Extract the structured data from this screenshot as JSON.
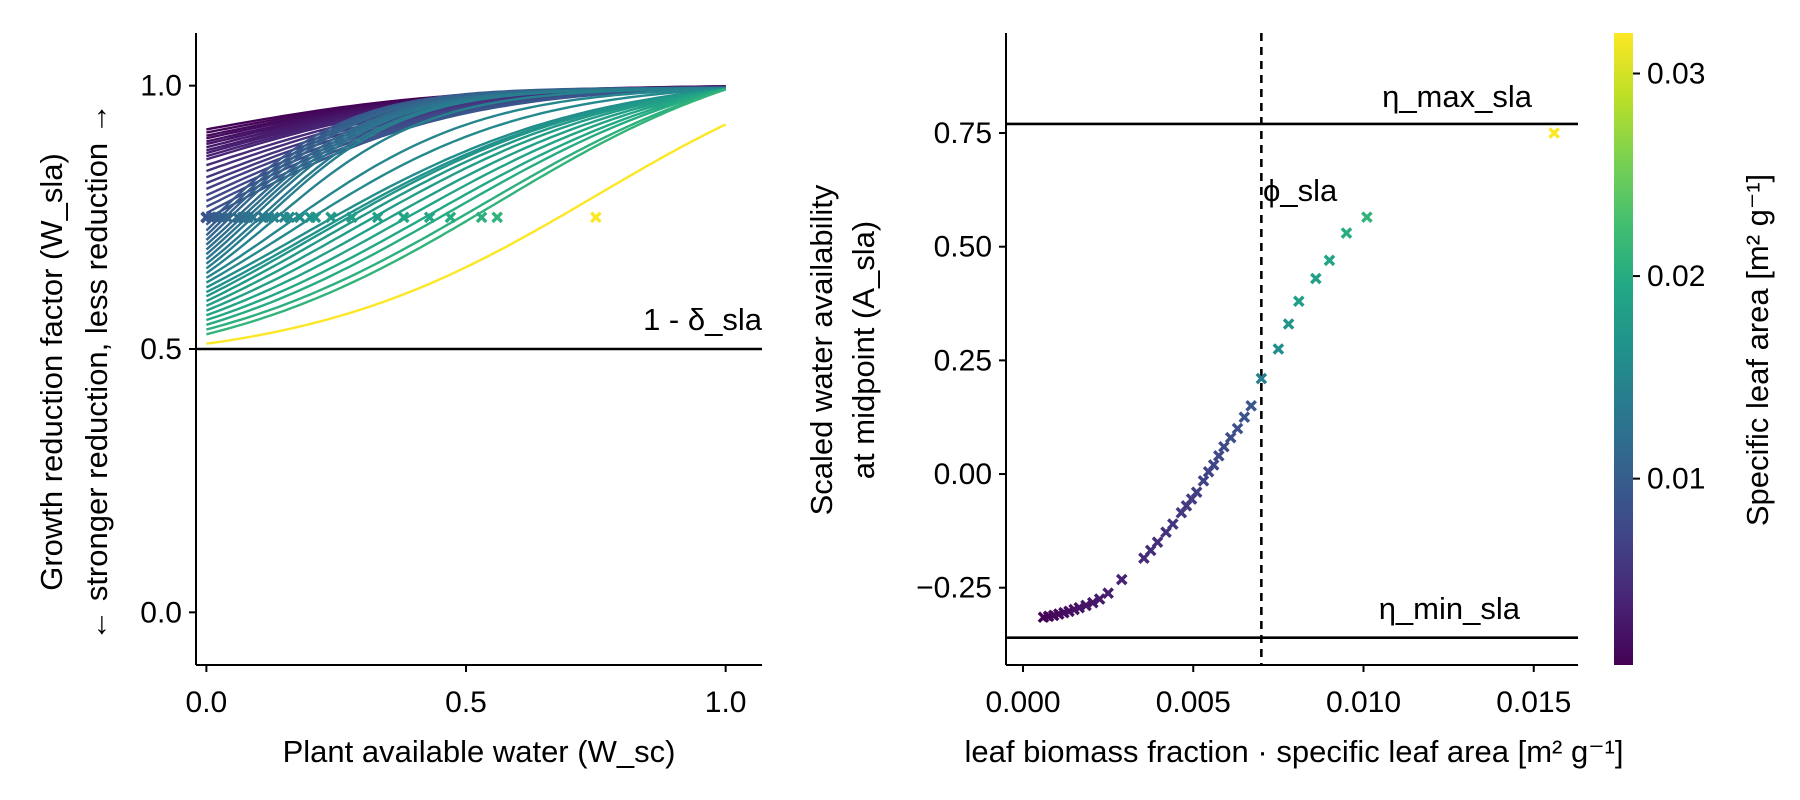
{
  "chart_data": [
    {
      "type": "line",
      "xlabel": "Plant available water (W_sc)",
      "ylabel_lines": [
        "Growth reduction factor (W_sla)",
        "← stronger reduction, less reduction →"
      ],
      "xlim": [
        -0.02,
        1.07
      ],
      "ylim": [
        -0.1,
        1.1
      ],
      "xticks": [
        0.0,
        0.5,
        1.0
      ],
      "xtick_labels": [
        "0.0",
        "0.5",
        "1.0"
      ],
      "yticks": [
        0.0,
        0.5,
        1.0
      ],
      "ytick_labels": [
        "0.0",
        "0.5",
        "1.0"
      ],
      "grid": false,
      "hline": {
        "y": 0.5,
        "label": "1 - δ_sla"
      },
      "curve_model": "logistic in W_sc, each curve passes through its marked midpoint (W_sc, 0.75) and tends to 1.0",
      "series": [
        {
          "sla": 0.001,
          "start": 0.917,
          "midpoint_x": 0.0
        },
        {
          "sla": 0.0013,
          "start": 0.911,
          "midpoint_x": 0.0
        },
        {
          "sla": 0.0016,
          "start": 0.905,
          "midpoint_x": 0.0
        },
        {
          "sla": 0.0019,
          "start": 0.9,
          "midpoint_x": 0.0
        },
        {
          "sla": 0.0022,
          "start": 0.894,
          "midpoint_x": 0.0
        },
        {
          "sla": 0.0025,
          "start": 0.889,
          "midpoint_x": 0.0
        },
        {
          "sla": 0.0028,
          "start": 0.883,
          "midpoint_x": 0.0
        },
        {
          "sla": 0.0031,
          "start": 0.877,
          "midpoint_x": 0.0
        },
        {
          "sla": 0.0034,
          "start": 0.872,
          "midpoint_x": 0.0
        },
        {
          "sla": 0.0037,
          "start": 0.866,
          "midpoint_x": 0.0
        },
        {
          "sla": 0.004,
          "start": 0.86,
          "midpoint_x": 0.0
        },
        {
          "sla": 0.0045,
          "start": 0.849,
          "midpoint_x": 0.0
        },
        {
          "sla": 0.005,
          "start": 0.838,
          "midpoint_x": 0.0
        },
        {
          "sla": 0.0055,
          "start": 0.826,
          "midpoint_x": 0.0
        },
        {
          "sla": 0.006,
          "start": 0.815,
          "midpoint_x": 0.0
        },
        {
          "sla": 0.0065,
          "start": 0.804,
          "midpoint_x": 0.0
        },
        {
          "sla": 0.007,
          "start": 0.792,
          "midpoint_x": 0.0
        },
        {
          "sla": 0.0075,
          "start": 0.781,
          "midpoint_x": 0.0
        },
        {
          "sla": 0.008,
          "start": 0.77,
          "midpoint_x": 0.0
        },
        {
          "sla": 0.0085,
          "start": 0.758,
          "midpoint_x": 0.0
        },
        {
          "sla": 0.009,
          "start": 0.747,
          "midpoint_x": 0.0
        },
        {
          "sla": 0.0095,
          "start": 0.736,
          "midpoint_x": 0.01
        },
        {
          "sla": 0.01,
          "start": 0.725,
          "midpoint_x": 0.02
        },
        {
          "sla": 0.0105,
          "start": 0.716,
          "midpoint_x": 0.03
        },
        {
          "sla": 0.011,
          "start": 0.707,
          "midpoint_x": 0.04
        },
        {
          "sla": 0.0115,
          "start": 0.698,
          "midpoint_x": 0.06
        },
        {
          "sla": 0.012,
          "start": 0.689,
          "midpoint_x": 0.07
        },
        {
          "sla": 0.0125,
          "start": 0.68,
          "midpoint_x": 0.08
        },
        {
          "sla": 0.013,
          "start": 0.671,
          "midpoint_x": 0.09
        },
        {
          "sla": 0.0135,
          "start": 0.662,
          "midpoint_x": 0.11
        },
        {
          "sla": 0.014,
          "start": 0.653,
          "midpoint_x": 0.12
        },
        {
          "sla": 0.0145,
          "start": 0.644,
          "midpoint_x": 0.13
        },
        {
          "sla": 0.015,
          "start": 0.635,
          "midpoint_x": 0.15
        },
        {
          "sla": 0.0155,
          "start": 0.626,
          "midpoint_x": 0.16
        },
        {
          "sla": 0.016,
          "start": 0.617,
          "midpoint_x": 0.18
        },
        {
          "sla": 0.0165,
          "start": 0.608,
          "midpoint_x": 0.2
        },
        {
          "sla": 0.017,
          "start": 0.6,
          "midpoint_x": 0.21
        },
        {
          "sla": 0.0175,
          "start": 0.591,
          "midpoint_x": 0.24
        },
        {
          "sla": 0.018,
          "start": 0.582,
          "midpoint_x": 0.28
        },
        {
          "sla": 0.0185,
          "start": 0.573,
          "midpoint_x": 0.33
        },
        {
          "sla": 0.019,
          "start": 0.564,
          "midpoint_x": 0.38
        },
        {
          "sla": 0.0195,
          "start": 0.555,
          "midpoint_x": 0.43
        },
        {
          "sla": 0.02,
          "start": 0.546,
          "midpoint_x": 0.47
        },
        {
          "sla": 0.0205,
          "start": 0.537,
          "midpoint_x": 0.53
        },
        {
          "sla": 0.021,
          "start": 0.528,
          "midpoint_x": 0.56
        },
        {
          "sla": 0.032,
          "start": 0.51,
          "midpoint_x": 0.75
        }
      ]
    },
    {
      "type": "scatter",
      "xlabel": "leaf biomass fraction · specific leaf area [m² g⁻¹]",
      "ylabel_lines": [
        "Scaled water availability",
        "at midpoint (A_sla)"
      ],
      "xlim": [
        -0.0005,
        0.0163
      ],
      "ylim": [
        -0.42,
        0.97
      ],
      "xticks": [
        0.0,
        0.005,
        0.01,
        0.015
      ],
      "xtick_labels": [
        "0.000",
        "0.005",
        "0.010",
        "0.015"
      ],
      "yticks": [
        -0.25,
        0.0,
        0.25,
        0.5,
        0.75
      ],
      "ytick_labels": [
        "−0.25",
        "0.00",
        "0.25",
        "0.50",
        "0.75"
      ],
      "grid": false,
      "hlines": [
        {
          "y": 0.77,
          "label": "η_max_sla"
        },
        {
          "y": -0.36,
          "label": "η_min_sla"
        }
      ],
      "vline": {
        "x": 0.007,
        "label": "ϕ_sla"
      },
      "points": [
        {
          "x": 0.0006,
          "y": -0.315,
          "sla": 0.001
        },
        {
          "x": 0.00075,
          "y": -0.313,
          "sla": 0.0012
        },
        {
          "x": 0.0009,
          "y": -0.311,
          "sla": 0.0014
        },
        {
          "x": 0.00105,
          "y": -0.308,
          "sla": 0.0016
        },
        {
          "x": 0.0012,
          "y": -0.305,
          "sla": 0.0018
        },
        {
          "x": 0.00135,
          "y": -0.302,
          "sla": 0.002
        },
        {
          "x": 0.0015,
          "y": -0.298,
          "sla": 0.0022
        },
        {
          "x": 0.00165,
          "y": -0.294,
          "sla": 0.0024
        },
        {
          "x": 0.00185,
          "y": -0.289,
          "sla": 0.0026
        },
        {
          "x": 0.00205,
          "y": -0.283,
          "sla": 0.0028
        },
        {
          "x": 0.00225,
          "y": -0.275,
          "sla": 0.003
        },
        {
          "x": 0.0025,
          "y": -0.262,
          "sla": 0.0033
        },
        {
          "x": 0.0029,
          "y": -0.232,
          "sla": 0.0037
        },
        {
          "x": 0.00355,
          "y": -0.185,
          "sla": 0.0045
        },
        {
          "x": 0.00375,
          "y": -0.168,
          "sla": 0.0048
        },
        {
          "x": 0.00395,
          "y": -0.15,
          "sla": 0.005
        },
        {
          "x": 0.0042,
          "y": -0.128,
          "sla": 0.0053
        },
        {
          "x": 0.0044,
          "y": -0.11,
          "sla": 0.0056
        },
        {
          "x": 0.00465,
          "y": -0.085,
          "sla": 0.0059
        },
        {
          "x": 0.0048,
          "y": -0.07,
          "sla": 0.0061
        },
        {
          "x": 0.00495,
          "y": -0.055,
          "sla": 0.0063
        },
        {
          "x": 0.0051,
          "y": -0.04,
          "sla": 0.0065
        },
        {
          "x": 0.0053,
          "y": -0.015,
          "sla": 0.0068
        },
        {
          "x": 0.00545,
          "y": 0.005,
          "sla": 0.007
        },
        {
          "x": 0.0056,
          "y": 0.02,
          "sla": 0.0072
        },
        {
          "x": 0.00575,
          "y": 0.04,
          "sla": 0.0075
        },
        {
          "x": 0.0059,
          "y": 0.06,
          "sla": 0.0078
        },
        {
          "x": 0.0061,
          "y": 0.08,
          "sla": 0.0081
        },
        {
          "x": 0.0063,
          "y": 0.1,
          "sla": 0.0084
        },
        {
          "x": 0.0065,
          "y": 0.125,
          "sla": 0.0088
        },
        {
          "x": 0.0067,
          "y": 0.15,
          "sla": 0.0092
        },
        {
          "x": 0.007,
          "y": 0.21,
          "sla": 0.014
        },
        {
          "x": 0.0075,
          "y": 0.275,
          "sla": 0.016
        },
        {
          "x": 0.0078,
          "y": 0.33,
          "sla": 0.017
        },
        {
          "x": 0.0081,
          "y": 0.38,
          "sla": 0.018
        },
        {
          "x": 0.0086,
          "y": 0.43,
          "sla": 0.0185
        },
        {
          "x": 0.009,
          "y": 0.47,
          "sla": 0.019
        },
        {
          "x": 0.0095,
          "y": 0.53,
          "sla": 0.02
        },
        {
          "x": 0.0101,
          "y": 0.565,
          "sla": 0.021
        },
        {
          "x": 0.0156,
          "y": 0.75,
          "sla": 0.032
        }
      ]
    }
  ],
  "colorbar": {
    "label": "Specific leaf area [m² g⁻¹]",
    "range": [
      0.0008,
      0.032
    ],
    "ticks": [
      0.01,
      0.02,
      0.03
    ],
    "tick_labels": [
      "0.01",
      "0.02",
      "0.03"
    ],
    "colormap": "viridis",
    "colormap_stops": [
      "#440154",
      "#482475",
      "#414487",
      "#355f8d",
      "#2a788e",
      "#21918c",
      "#22a884",
      "#44bf70",
      "#7ad151",
      "#bddf26",
      "#fde725"
    ]
  }
}
